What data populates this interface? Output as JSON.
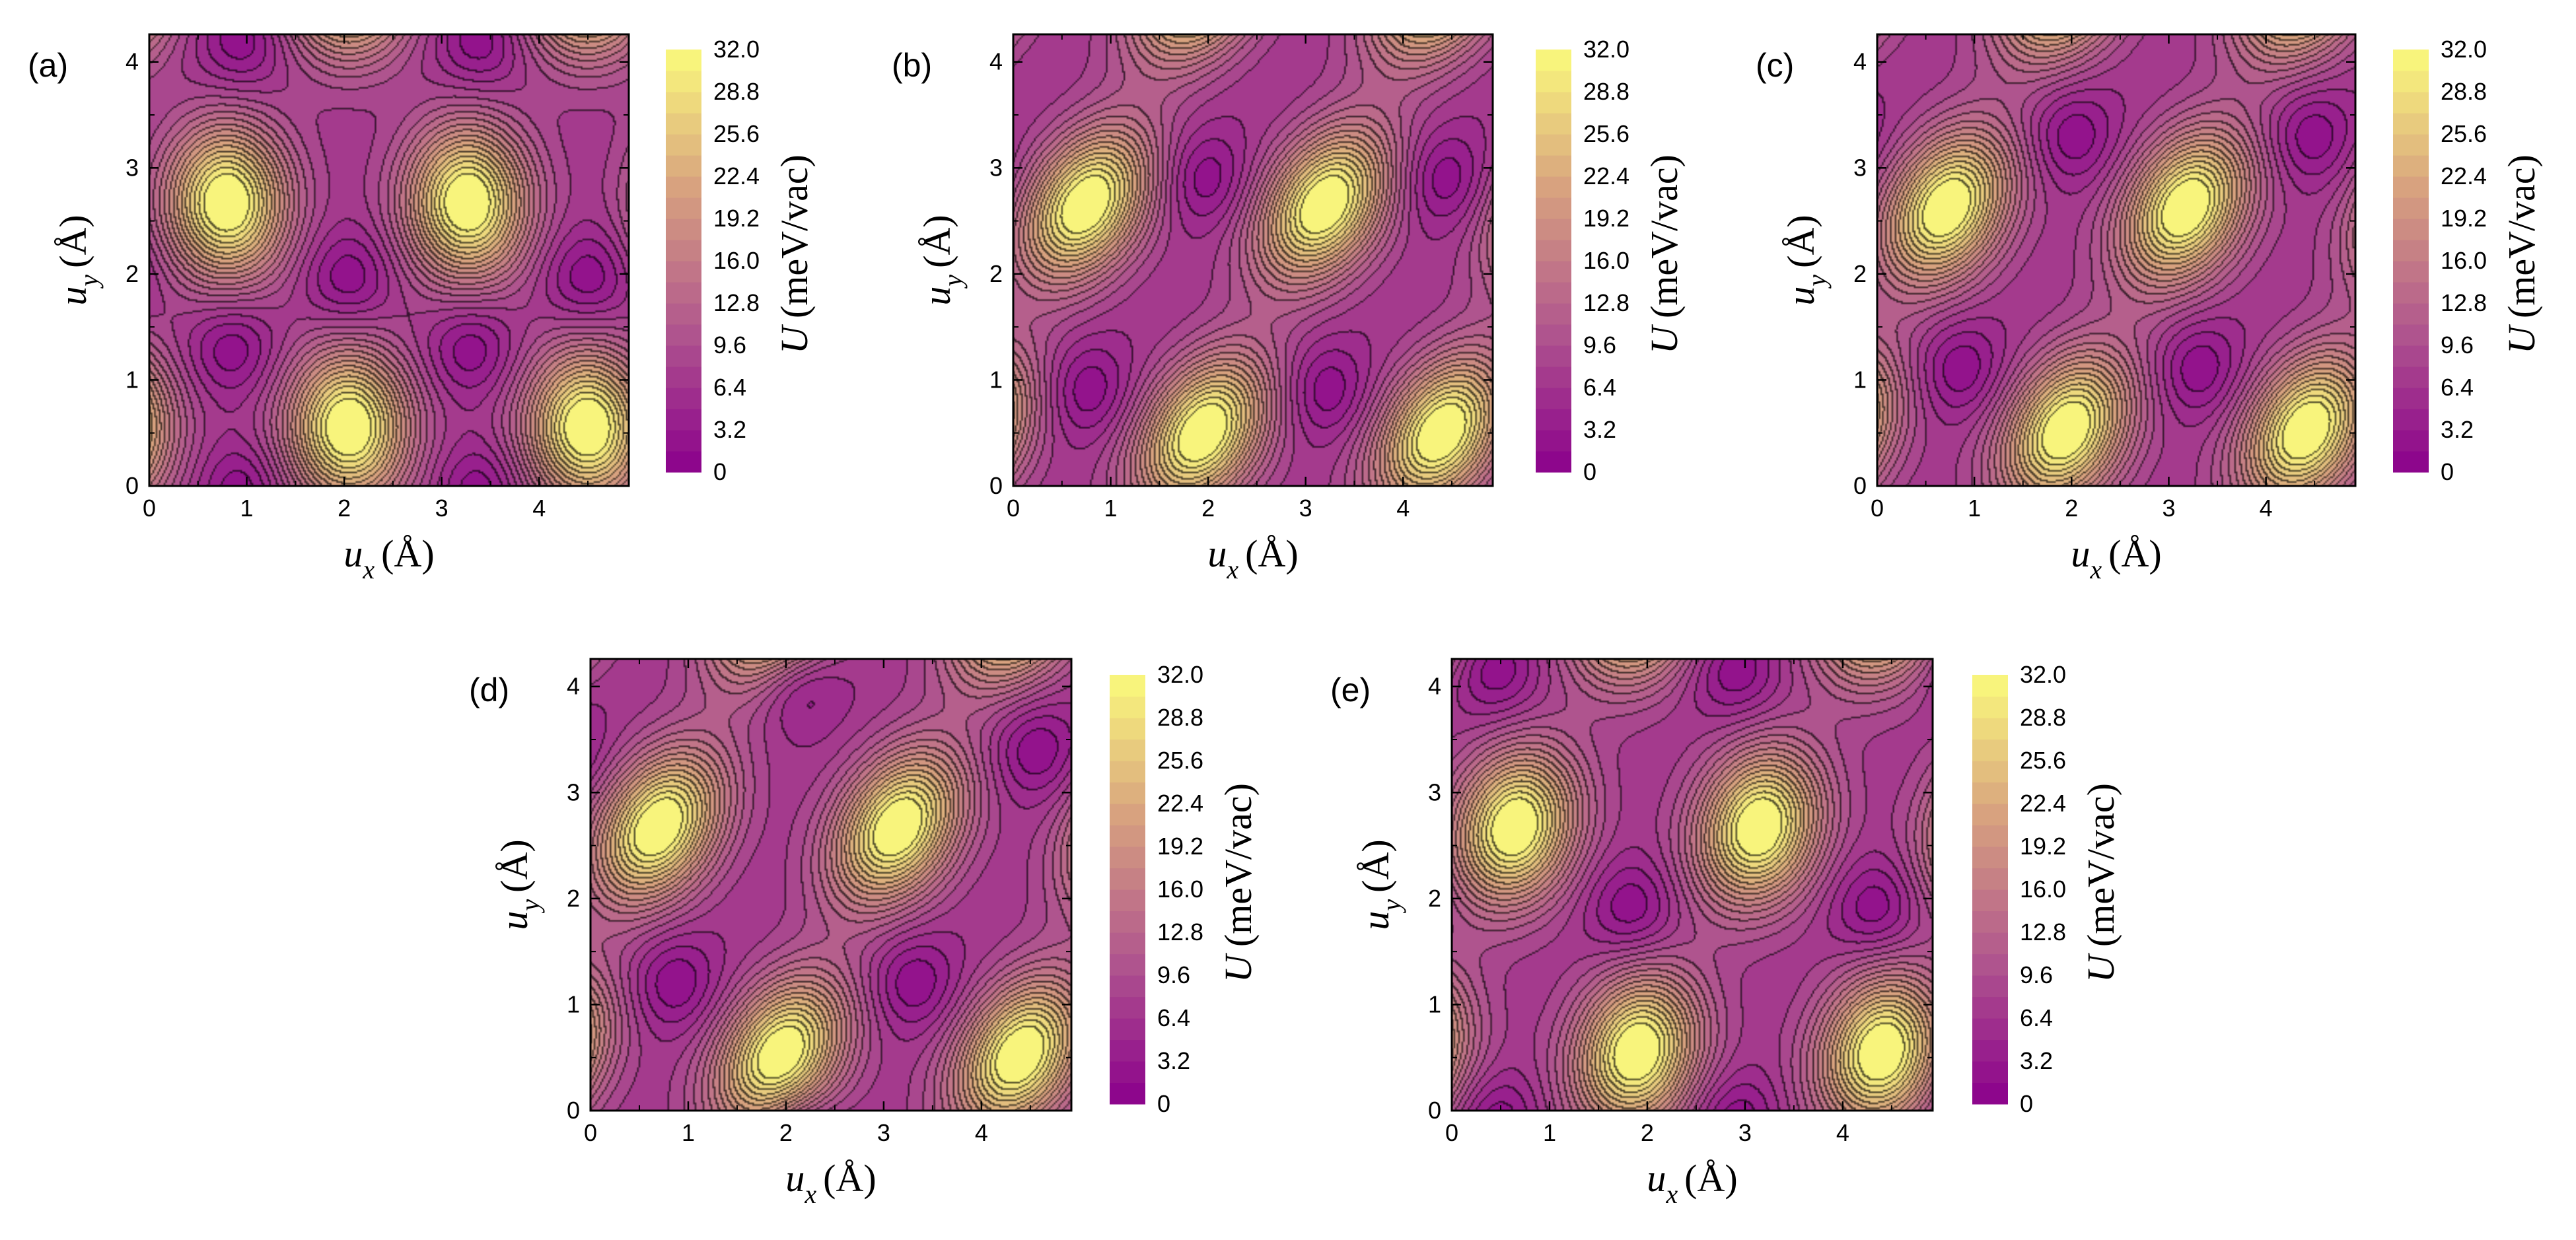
{
  "figure": {
    "colorbar": {
      "ticks": [
        "32.0",
        "28.8",
        "25.6",
        "22.4",
        "19.2",
        "16.0",
        "12.8",
        "9.6",
        "6.4",
        "3.2",
        "0"
      ],
      "range": [
        0,
        32
      ],
      "levels": 20,
      "label_symbol": "U",
      "label_unit": "(meV/vac)",
      "colors": [
        "#8a008c",
        "#b0568e",
        "#d7a07f",
        "#fbfb7c"
      ]
    },
    "axes": {
      "xlabel_symbol": "u",
      "xlabel_sub": "x",
      "xlabel_unit": "(Å)",
      "ylabel_symbol": "u",
      "ylabel_sub": "y",
      "ylabel_unit": "(Å)",
      "xticks": [
        "0",
        "1",
        "2",
        "3",
        "4"
      ],
      "yticks": [
        "0",
        "1",
        "2",
        "3",
        "4"
      ]
    }
  },
  "chart_data": [
    {
      "type": "heatmap",
      "panel": "(a)",
      "x_range": [
        0,
        4.92
      ],
      "y_range": [
        0,
        4.26
      ],
      "z_range": [
        0,
        32
      ],
      "peaks": [
        [
          0.8,
          2.67
        ],
        [
          3.27,
          2.67
        ],
        [
          2.05,
          0.55
        ],
        [
          4.5,
          0.55
        ]
      ],
      "skew": 0.0,
      "minima": [
        [
          2.05,
          1.95
        ],
        [
          4.5,
          1.95
        ],
        [
          0.85,
          1.3
        ],
        [
          3.3,
          1.3
        ],
        [
          0.95,
          4.2
        ],
        [
          3.4,
          4.2
        ]
      ]
    },
    {
      "type": "heatmap",
      "panel": "(b)",
      "x_range": [
        0,
        4.92
      ],
      "y_range": [
        0,
        4.26
      ],
      "z_range": [
        0,
        32
      ],
      "peaks": [
        [
          0.75,
          2.65
        ],
        [
          3.2,
          2.65
        ],
        [
          1.95,
          0.5
        ],
        [
          4.4,
          0.5
        ]
      ],
      "skew": 0.35,
      "minima": [
        [
          0.75,
          0.9
        ],
        [
          3.2,
          0.9
        ],
        [
          1.95,
          2.9
        ],
        [
          4.4,
          2.9
        ]
      ]
    },
    {
      "type": "heatmap",
      "panel": "(c)",
      "x_range": [
        0,
        4.92
      ],
      "y_range": [
        0,
        4.26
      ],
      "z_range": [
        0,
        32
      ],
      "peaks": [
        [
          0.72,
          2.62
        ],
        [
          3.18,
          2.62
        ],
        [
          1.95,
          0.52
        ],
        [
          4.42,
          0.52
        ]
      ],
      "skew": 0.3,
      "minima": [
        [
          0.85,
          1.1
        ],
        [
          3.3,
          1.1
        ],
        [
          2.0,
          3.3
        ],
        [
          4.45,
          3.3
        ]
      ]
    },
    {
      "type": "heatmap",
      "panel": "(d)",
      "x_range": [
        0,
        4.92
      ],
      "y_range": [
        0,
        4.26
      ],
      "z_range": [
        0,
        32
      ],
      "peaks": [
        [
          0.7,
          2.67
        ],
        [
          3.15,
          2.67
        ],
        [
          1.95,
          0.52
        ],
        [
          4.4,
          0.52
        ]
      ],
      "skew": 0.32,
      "minima": [
        [
          0.85,
          1.2
        ],
        [
          3.3,
          1.2
        ],
        [
          2.1,
          4.05
        ],
        [
          4.55,
          3.4
        ]
      ]
    },
    {
      "type": "heatmap",
      "panel": "(e)",
      "x_range": [
        0,
        4.92
      ],
      "y_range": [
        0,
        4.26
      ],
      "z_range": [
        0,
        32
      ],
      "peaks": [
        [
          0.65,
          2.67
        ],
        [
          3.15,
          2.67
        ],
        [
          1.9,
          0.55
        ],
        [
          4.4,
          0.55
        ]
      ],
      "skew": 0.15,
      "minima": [
        [
          1.85,
          1.9
        ],
        [
          4.35,
          1.9
        ],
        [
          0.45,
          4.15
        ],
        [
          2.9,
          4.15
        ]
      ]
    }
  ]
}
